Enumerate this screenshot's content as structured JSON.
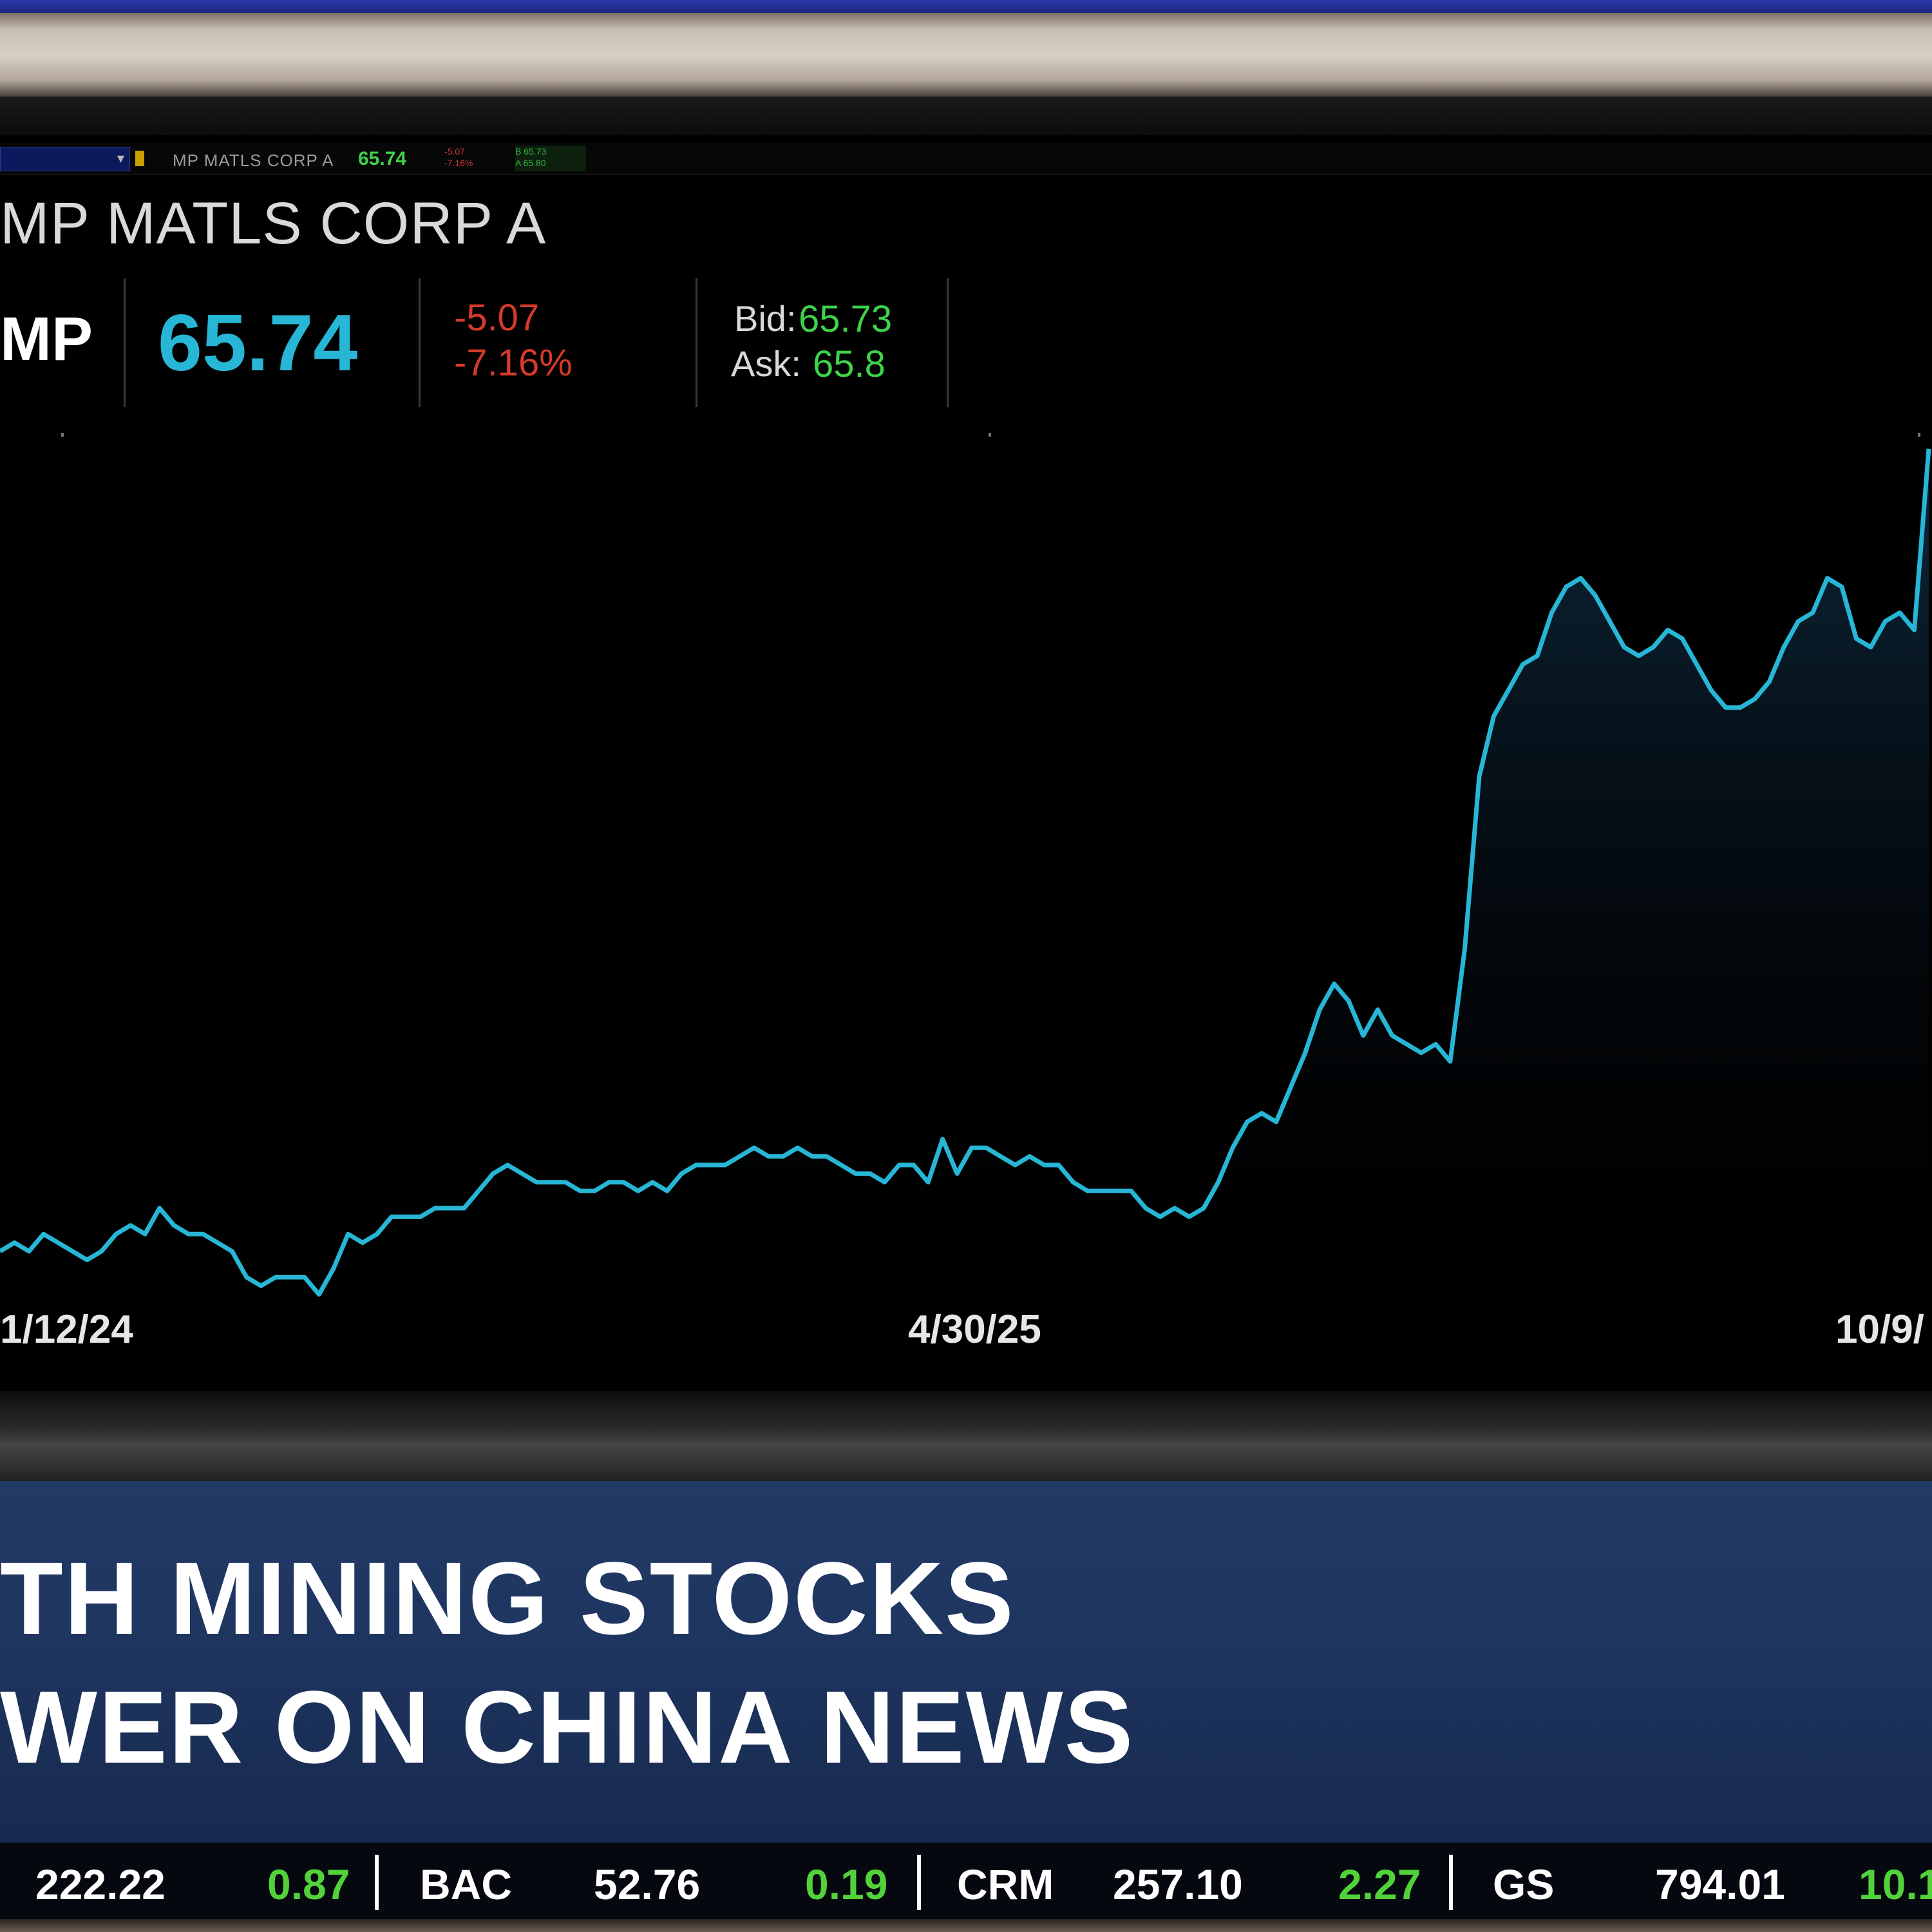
{
  "toolbar": {
    "security_name": "MP MATLS CORP A",
    "last_price": "65.74",
    "change_small": "-5.07",
    "change_pct_small": "-7.16%",
    "bid_small": "B 65.73",
    "ask_small": "A 65.80"
  },
  "quote": {
    "company_name": "MP MATLS CORP A",
    "ticker": "MP",
    "last": "65.74",
    "change": "-5.07",
    "change_pct": "-7.16%",
    "bid_label": "Bid:",
    "bid": "65.73",
    "ask_label": "Ask:",
    "ask": "65.8"
  },
  "chart_data": {
    "type": "area",
    "x_tick_labels": [
      "1/12/24",
      "4/30/25",
      "10/9/"
    ],
    "series": [
      {
        "values": [
          0.05,
          0.06,
          0.05,
          0.07,
          0.06,
          0.05,
          0.04,
          0.05,
          0.07,
          0.08,
          0.07,
          0.1,
          0.08,
          0.07,
          0.07,
          0.06,
          0.05,
          0.02,
          0.01,
          0.02,
          0.02,
          0.02,
          0.0,
          0.03,
          0.07,
          0.06,
          0.07,
          0.09,
          0.09,
          0.09,
          0.1,
          0.1,
          0.1,
          0.12,
          0.14,
          0.15,
          0.14,
          0.13,
          0.13,
          0.13,
          0.12,
          0.12,
          0.13,
          0.13,
          0.12,
          0.13,
          0.12,
          0.14,
          0.15,
          0.15,
          0.15,
          0.16,
          0.17,
          0.16,
          0.16,
          0.17,
          0.16,
          0.16,
          0.15,
          0.14,
          0.14,
          0.13,
          0.15,
          0.15,
          0.13,
          0.18,
          0.14,
          0.17,
          0.17,
          0.16,
          0.15,
          0.16,
          0.15,
          0.15,
          0.13,
          0.12,
          0.12,
          0.12,
          0.12,
          0.1,
          0.09,
          0.1,
          0.09,
          0.1,
          0.13,
          0.17,
          0.2,
          0.21,
          0.2,
          0.24,
          0.28,
          0.33,
          0.36,
          0.34,
          0.3,
          0.33,
          0.3,
          0.29,
          0.28,
          0.29,
          0.27,
          0.4,
          0.6,
          0.67,
          0.7,
          0.73,
          0.74,
          0.79,
          0.82,
          0.83,
          0.81,
          0.78,
          0.75,
          0.74,
          0.75,
          0.77,
          0.76,
          0.73,
          0.7,
          0.68,
          0.68,
          0.69,
          0.71,
          0.75,
          0.78,
          0.79,
          0.83,
          0.82,
          0.76,
          0.75,
          0.78,
          0.79,
          0.77,
          0.98
        ]
      }
    ],
    "grid": false,
    "legend": "none"
  },
  "colors": {
    "accent": "#27b6d6",
    "down": "#d63a2a",
    "up": "#3fd24a",
    "lower_third": "#223a66"
  },
  "headline": {
    "line1": "TH MINING STOCKS",
    "line2": "WER ON CHINA NEWS"
  },
  "ticker_tape": {
    "items": [
      {
        "symbol": "",
        "price": "222.22",
        "change": "0.87"
      },
      {
        "symbol": "BAC",
        "price": "52.76",
        "change": "0.19"
      },
      {
        "symbol": "CRM",
        "price": "257.10",
        "change": "2.27"
      },
      {
        "symbol": "GS",
        "price": "794.01",
        "change": "10.1"
      }
    ]
  }
}
